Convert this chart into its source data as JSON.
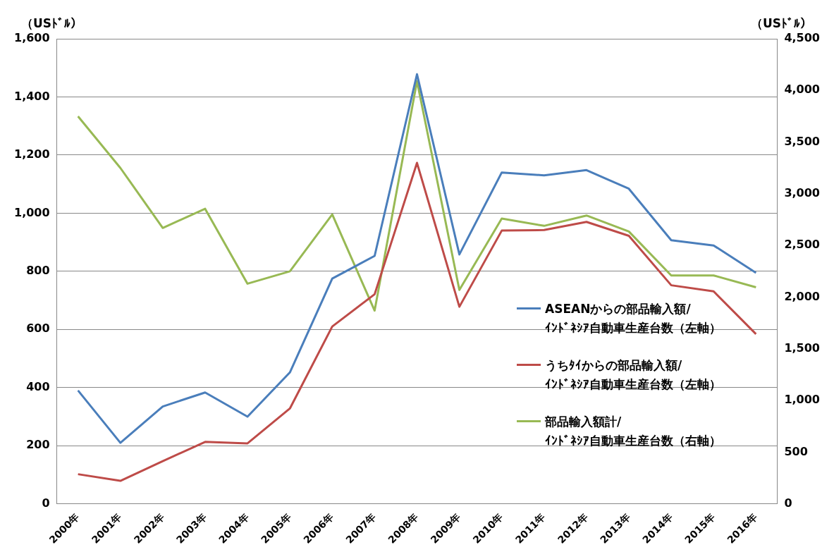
{
  "chart_data": {
    "type": "line",
    "categories": [
      "2000年",
      "2001年",
      "2002年",
      "2003年",
      "2004年",
      "2005年",
      "2006年",
      "2007年",
      "2008年",
      "2009年",
      "2010年",
      "2011年",
      "2012年",
      "2013年",
      "2014年",
      "2015年",
      "2016年"
    ],
    "series": [
      {
        "name": "ASEANからの部品輸入額/\nｲﾝﾄﾞﾈｼｱ自動車生産台数（左軸）",
        "color": "#4a7ebb",
        "values": [
          390,
          210,
          335,
          383,
          300,
          452,
          775,
          853,
          1478,
          858,
          1140,
          1130,
          1148,
          1084,
          907,
          889,
          795
        ]
      },
      {
        "name": "うちﾀｲからの部品輸入額/\nｲﾝﾄﾞﾈｼｱ自動車生産台数（左軸）",
        "color": "#be4b48",
        "values": [
          102,
          79,
          147,
          213,
          208,
          328,
          610,
          721,
          1173,
          678,
          940,
          942,
          970,
          922,
          752,
          731,
          584
        ]
      },
      {
        "name": "部品輸入額計/\nｲﾝﾄﾞﾈｼｱ自動車生産台数（右軸）",
        "color": "#98b954",
        "axis": "y2",
        "values": [
          3750,
          3250,
          2670,
          2855,
          2130,
          2250,
          2800,
          1870,
          4090,
          2070,
          2760,
          2690,
          2790,
          2635,
          2210,
          2210,
          2095
        ]
      }
    ],
    "ylabel": "（USﾄﾞﾙ）",
    "y2label": "（USﾄﾞﾙ）",
    "ylim": [
      0,
      1600
    ],
    "yticks": [
      0,
      200,
      400,
      600,
      800,
      {
        "value": 1000,
        "label": "1,000"
      },
      {
        "value": 1200,
        "label": "1,200"
      },
      {
        "value": 1400,
        "label": "1,400"
      },
      {
        "value": 1600,
        "label": "1,600"
      }
    ],
    "y2lim": [
      0,
      4500
    ],
    "y2ticks": [
      0,
      500,
      {
        "value": 1000,
        "label": "1,000"
      },
      {
        "value": 1500,
        "label": "1,500"
      },
      {
        "value": 2000,
        "label": "2,000"
      },
      {
        "value": 2500,
        "label": "2,500"
      },
      {
        "value": 3000,
        "label": "3,000"
      },
      {
        "value": 3500,
        "label": "3,500"
      },
      {
        "value": 4000,
        "label": "4,000"
      },
      {
        "value": 4500,
        "label": "4,500"
      }
    ],
    "grid": "y",
    "legend": "bottom right",
    "marker": "none",
    "line_style": "solid"
  }
}
